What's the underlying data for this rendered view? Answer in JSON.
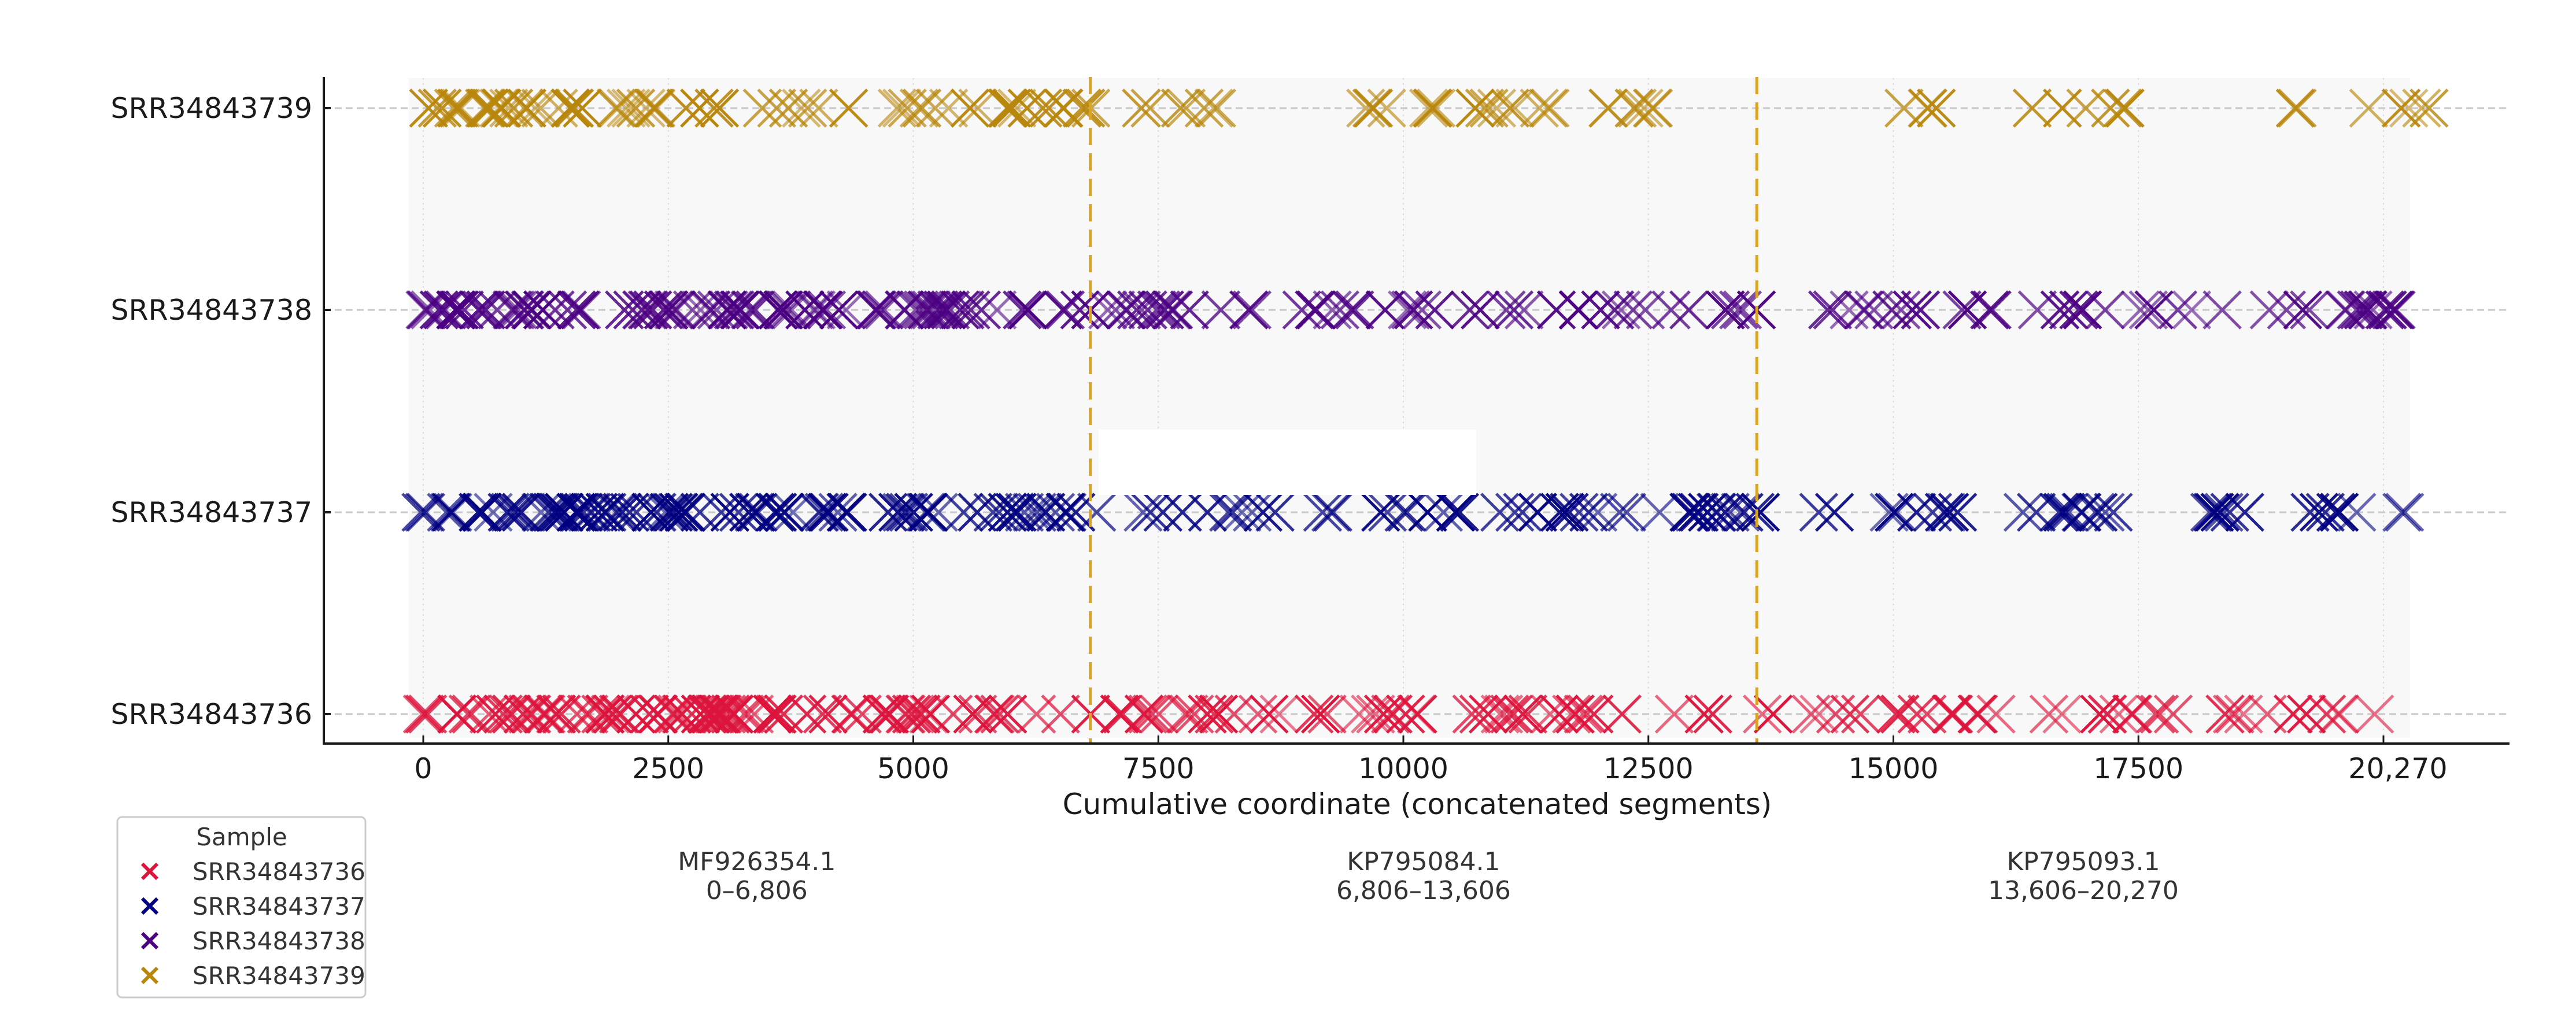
{
  "chart_data": {
    "type": "scatter",
    "title": "",
    "xlabel": "Cumulative coordinate (concatenated segments)",
    "ylabel": "",
    "xlim": [
      -1000,
      21500
    ],
    "x_ticks": [
      0,
      2500,
      5000,
      7500,
      10000,
      12500,
      15000,
      17500
    ],
    "x_tick_labels": [
      "0",
      "2500",
      "5000",
      "7500",
      "10000",
      "12500",
      "15000",
      "17500"
    ],
    "x_end_label": {
      "value": 20000,
      "label": "20,270"
    },
    "total_length": 20270,
    "categories": [
      "SRR34843736",
      "SRR34843737",
      "SRR34843738",
      "SRR34843739"
    ],
    "grid": {
      "x": "dotted",
      "y": "dashed"
    },
    "marker": "x",
    "segment_boundaries": [
      6806,
      13606
    ],
    "boundary_color": "#DAA520",
    "segments": [
      {
        "name": "MF926354.1",
        "range": "0–6,806",
        "start": 0,
        "end": 6806
      },
      {
        "name": "KP795084.1",
        "range": "6,806–13,606",
        "start": 6806,
        "end": 13606
      },
      {
        "name": "KP795093.1",
        "range": "13,606–20,270",
        "start": 13606,
        "end": 20270
      }
    ],
    "series": [
      {
        "name": "SRR34843736",
        "color": "#DC143C",
        "clusters": [
          {
            "start": -50,
            "end": 4500,
            "density": 1.0
          },
          {
            "start": 4500,
            "end": 6400,
            "density": 0.7
          },
          {
            "start": 6400,
            "end": 8790,
            "density": 0.45
          },
          {
            "start": 9000,
            "end": 12550,
            "density": 0.5
          },
          {
            "start": 12600,
            "end": 13300,
            "density": 0.3
          },
          {
            "start": 13560,
            "end": 15650,
            "density": 0.4
          },
          {
            "start": 15800,
            "end": 17870,
            "density": 0.4
          },
          {
            "start": 18280,
            "end": 20210,
            "density": 0.35
          }
        ]
      },
      {
        "name": "SRR34843737",
        "color": "#000080",
        "clusters": [
          {
            "start": -50,
            "end": 4500,
            "density": 1.0
          },
          {
            "start": 4500,
            "end": 6806,
            "density": 0.7
          },
          {
            "start": 6806,
            "end": 13720,
            "density": 0.45
          },
          {
            "start": 14235,
            "end": 15700,
            "density": 0.45
          },
          {
            "start": 16280,
            "end": 17900,
            "density": 0.45
          },
          {
            "start": 18200,
            "end": 20450,
            "density": 0.4
          }
        ]
      },
      {
        "name": "SRR34843738",
        "color": "#4B0082",
        "clusters": [
          {
            "start": -50,
            "end": 5500,
            "density": 1.0
          },
          {
            "start": 5500,
            "end": 8700,
            "density": 0.55
          },
          {
            "start": 8950,
            "end": 13750,
            "density": 0.45
          },
          {
            "start": 14200,
            "end": 20350,
            "density": 0.45
          }
        ]
      },
      {
        "name": "SRR34843739",
        "color": "#B8860B",
        "clusters": [
          {
            "start": -50,
            "end": 1300,
            "density": 1.0
          },
          {
            "start": 1300,
            "end": 6900,
            "density": 0.55
          },
          {
            "start": 7210,
            "end": 8490,
            "density": 0.35
          },
          {
            "start": 9450,
            "end": 11500,
            "density": 0.5
          },
          {
            "start": 11500,
            "end": 12720,
            "density": 0.35
          },
          {
            "start": 14840,
            "end": 15560,
            "density": 0.3
          },
          {
            "start": 16220,
            "end": 17690,
            "density": 0.3
          },
          {
            "start": 18650,
            "end": 19220,
            "density": 0.2
          },
          {
            "start": 19650,
            "end": 20470,
            "density": 0.35
          }
        ]
      }
    ],
    "legend": {
      "title": "Sample",
      "position": "bottom-left",
      "entries": [
        "SRR34843736",
        "SRR34843737",
        "SRR34843738",
        "SRR34843739"
      ]
    }
  }
}
